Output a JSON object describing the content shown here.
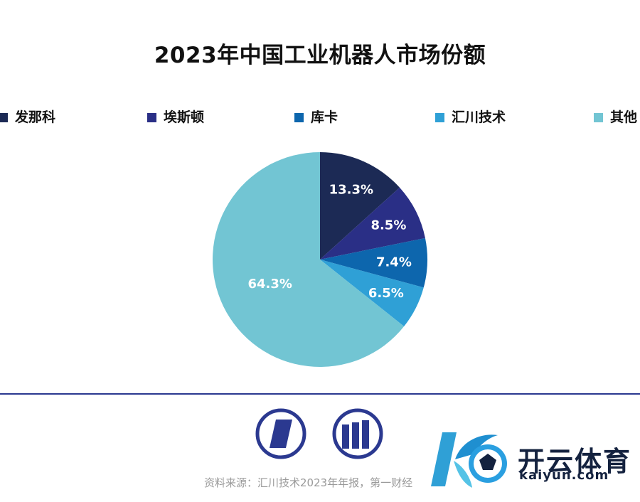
{
  "chart_data": {
    "type": "pie",
    "title": "2023年中国工业机器人市场份额",
    "legend_position": "top",
    "categories": [
      "发那科",
      "埃斯顿",
      "库卡",
      "汇川技术",
      "其他"
    ],
    "values": [
      13.3,
      8.5,
      7.4,
      6.5,
      64.3
    ],
    "data_labels": [
      "13.3%",
      "8.5%",
      "7.4%",
      "6.5%",
      "64.3%"
    ],
    "colors": [
      "#1c2a55",
      "#2a2f86",
      "#0d66ad",
      "#2fa0d6",
      "#72c5d3"
    ]
  },
  "footer": {
    "source": "资料来源：汇川技术2023年年报，第一财经"
  },
  "logos": {
    "left_icon": "parallelogram-logo-icon",
    "right_icon": "bar-columns-logo-icon",
    "color": "#2b3990"
  },
  "watermark": {
    "brand": "开云体育",
    "domain": "kaiyun.com",
    "icon": "k-soccer-ball-logo-icon",
    "accent_color": "#2fa0d6"
  }
}
